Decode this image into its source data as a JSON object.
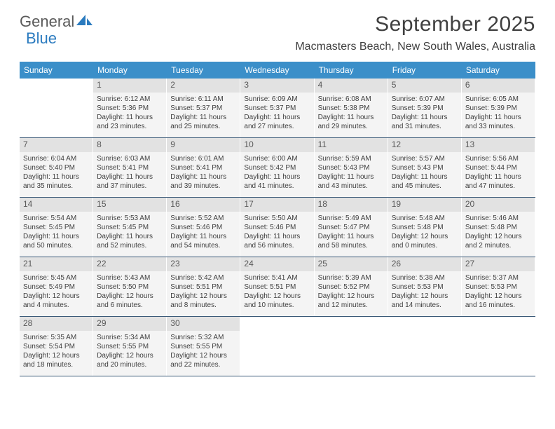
{
  "logo": {
    "text_dark": "General",
    "text_blue": "Blue"
  },
  "title": "September 2025",
  "location": "Macmasters Beach, New South Wales, Australia",
  "colors": {
    "header_bg": "#3b8fc9",
    "header_text": "#ffffff",
    "daynum_bg": "#e2e2e2",
    "cell_bg": "#f4f4f4",
    "row_border": "#3b5a78",
    "text": "#404040",
    "logo_blue": "#2b7bbf"
  },
  "weekdays": [
    "Sunday",
    "Monday",
    "Tuesday",
    "Wednesday",
    "Thursday",
    "Friday",
    "Saturday"
  ],
  "weeks": [
    [
      null,
      {
        "n": "1",
        "sr": "Sunrise: 6:12 AM",
        "ss": "Sunset: 5:36 PM",
        "d1": "Daylight: 11 hours",
        "d2": "and 23 minutes."
      },
      {
        "n": "2",
        "sr": "Sunrise: 6:11 AM",
        "ss": "Sunset: 5:37 PM",
        "d1": "Daylight: 11 hours",
        "d2": "and 25 minutes."
      },
      {
        "n": "3",
        "sr": "Sunrise: 6:09 AM",
        "ss": "Sunset: 5:37 PM",
        "d1": "Daylight: 11 hours",
        "d2": "and 27 minutes."
      },
      {
        "n": "4",
        "sr": "Sunrise: 6:08 AM",
        "ss": "Sunset: 5:38 PM",
        "d1": "Daylight: 11 hours",
        "d2": "and 29 minutes."
      },
      {
        "n": "5",
        "sr": "Sunrise: 6:07 AM",
        "ss": "Sunset: 5:39 PM",
        "d1": "Daylight: 11 hours",
        "d2": "and 31 minutes."
      },
      {
        "n": "6",
        "sr": "Sunrise: 6:05 AM",
        "ss": "Sunset: 5:39 PM",
        "d1": "Daylight: 11 hours",
        "d2": "and 33 minutes."
      }
    ],
    [
      {
        "n": "7",
        "sr": "Sunrise: 6:04 AM",
        "ss": "Sunset: 5:40 PM",
        "d1": "Daylight: 11 hours",
        "d2": "and 35 minutes."
      },
      {
        "n": "8",
        "sr": "Sunrise: 6:03 AM",
        "ss": "Sunset: 5:41 PM",
        "d1": "Daylight: 11 hours",
        "d2": "and 37 minutes."
      },
      {
        "n": "9",
        "sr": "Sunrise: 6:01 AM",
        "ss": "Sunset: 5:41 PM",
        "d1": "Daylight: 11 hours",
        "d2": "and 39 minutes."
      },
      {
        "n": "10",
        "sr": "Sunrise: 6:00 AM",
        "ss": "Sunset: 5:42 PM",
        "d1": "Daylight: 11 hours",
        "d2": "and 41 minutes."
      },
      {
        "n": "11",
        "sr": "Sunrise: 5:59 AM",
        "ss": "Sunset: 5:43 PM",
        "d1": "Daylight: 11 hours",
        "d2": "and 43 minutes."
      },
      {
        "n": "12",
        "sr": "Sunrise: 5:57 AM",
        "ss": "Sunset: 5:43 PM",
        "d1": "Daylight: 11 hours",
        "d2": "and 45 minutes."
      },
      {
        "n": "13",
        "sr": "Sunrise: 5:56 AM",
        "ss": "Sunset: 5:44 PM",
        "d1": "Daylight: 11 hours",
        "d2": "and 47 minutes."
      }
    ],
    [
      {
        "n": "14",
        "sr": "Sunrise: 5:54 AM",
        "ss": "Sunset: 5:45 PM",
        "d1": "Daylight: 11 hours",
        "d2": "and 50 minutes."
      },
      {
        "n": "15",
        "sr": "Sunrise: 5:53 AM",
        "ss": "Sunset: 5:45 PM",
        "d1": "Daylight: 11 hours",
        "d2": "and 52 minutes."
      },
      {
        "n": "16",
        "sr": "Sunrise: 5:52 AM",
        "ss": "Sunset: 5:46 PM",
        "d1": "Daylight: 11 hours",
        "d2": "and 54 minutes."
      },
      {
        "n": "17",
        "sr": "Sunrise: 5:50 AM",
        "ss": "Sunset: 5:46 PM",
        "d1": "Daylight: 11 hours",
        "d2": "and 56 minutes."
      },
      {
        "n": "18",
        "sr": "Sunrise: 5:49 AM",
        "ss": "Sunset: 5:47 PM",
        "d1": "Daylight: 11 hours",
        "d2": "and 58 minutes."
      },
      {
        "n": "19",
        "sr": "Sunrise: 5:48 AM",
        "ss": "Sunset: 5:48 PM",
        "d1": "Daylight: 12 hours",
        "d2": "and 0 minutes."
      },
      {
        "n": "20",
        "sr": "Sunrise: 5:46 AM",
        "ss": "Sunset: 5:48 PM",
        "d1": "Daylight: 12 hours",
        "d2": "and 2 minutes."
      }
    ],
    [
      {
        "n": "21",
        "sr": "Sunrise: 5:45 AM",
        "ss": "Sunset: 5:49 PM",
        "d1": "Daylight: 12 hours",
        "d2": "and 4 minutes."
      },
      {
        "n": "22",
        "sr": "Sunrise: 5:43 AM",
        "ss": "Sunset: 5:50 PM",
        "d1": "Daylight: 12 hours",
        "d2": "and 6 minutes."
      },
      {
        "n": "23",
        "sr": "Sunrise: 5:42 AM",
        "ss": "Sunset: 5:51 PM",
        "d1": "Daylight: 12 hours",
        "d2": "and 8 minutes."
      },
      {
        "n": "24",
        "sr": "Sunrise: 5:41 AM",
        "ss": "Sunset: 5:51 PM",
        "d1": "Daylight: 12 hours",
        "d2": "and 10 minutes."
      },
      {
        "n": "25",
        "sr": "Sunrise: 5:39 AM",
        "ss": "Sunset: 5:52 PM",
        "d1": "Daylight: 12 hours",
        "d2": "and 12 minutes."
      },
      {
        "n": "26",
        "sr": "Sunrise: 5:38 AM",
        "ss": "Sunset: 5:53 PM",
        "d1": "Daylight: 12 hours",
        "d2": "and 14 minutes."
      },
      {
        "n": "27",
        "sr": "Sunrise: 5:37 AM",
        "ss": "Sunset: 5:53 PM",
        "d1": "Daylight: 12 hours",
        "d2": "and 16 minutes."
      }
    ],
    [
      {
        "n": "28",
        "sr": "Sunrise: 5:35 AM",
        "ss": "Sunset: 5:54 PM",
        "d1": "Daylight: 12 hours",
        "d2": "and 18 minutes."
      },
      {
        "n": "29",
        "sr": "Sunrise: 5:34 AM",
        "ss": "Sunset: 5:55 PM",
        "d1": "Daylight: 12 hours",
        "d2": "and 20 minutes."
      },
      {
        "n": "30",
        "sr": "Sunrise: 5:32 AM",
        "ss": "Sunset: 5:55 PM",
        "d1": "Daylight: 12 hours",
        "d2": "and 22 minutes."
      },
      null,
      null,
      null,
      null
    ]
  ]
}
